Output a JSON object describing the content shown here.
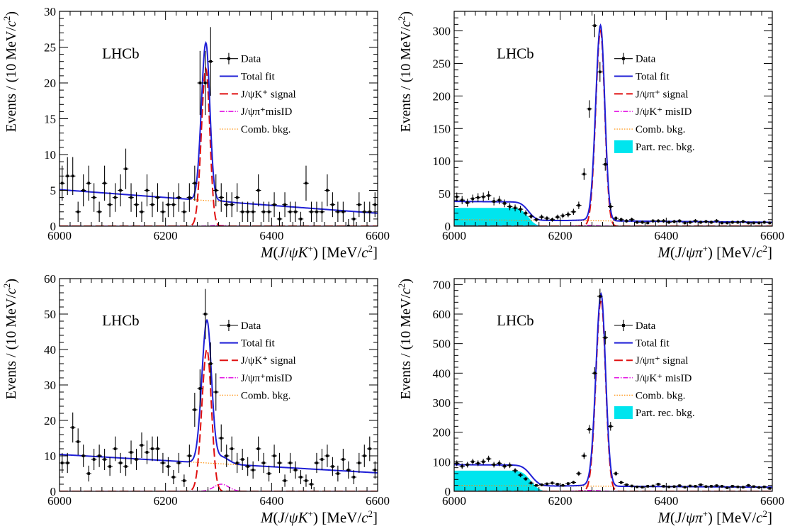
{
  "chart_data": [
    {
      "type": "line",
      "label": "LHCb",
      "xlabel_parts": {
        "m": "M",
        "open": "(",
        "jpsi_j": "J",
        "slash": "/",
        "psi": "ψ",
        "particle": "K",
        "charge": "+",
        "close": ")",
        "unit_pre": " [MeV/",
        "c": "c",
        "sq": "2",
        "unit_post": "]"
      },
      "ylabel_parts": {
        "pre": "Events / (10 MeV/",
        "c": "c",
        "sq": "2",
        "post": ")"
      },
      "xlim": [
        6000,
        6600
      ],
      "ylim": [
        0,
        30
      ],
      "xticks": [
        6000,
        6200,
        6400,
        6600
      ],
      "yticks": [
        0,
        5,
        10,
        15,
        20,
        25,
        30
      ],
      "legend": [
        {
          "key": "data",
          "text": "Data",
          "style": "data"
        },
        {
          "key": "total",
          "text": "Total fit",
          "style": "total"
        },
        {
          "key": "signal",
          "text": "J/ψK⁺ signal",
          "style": "signal"
        },
        {
          "key": "misid",
          "text": "J/ψπ⁺misID",
          "style": "misid"
        },
        {
          "key": "comb",
          "text": "Comb. bkg.",
          "style": "comb"
        }
      ],
      "comb": {
        "a": 5.1,
        "b": 1.8
      },
      "partrec": null,
      "signal": {
        "mu": 6276,
        "amp": 22,
        "sigma": 7.5
      },
      "misid": {
        "mu": 6300,
        "amp": 0.1,
        "sigma": 15
      },
      "data": {
        "x": [
          6005,
          6015,
          6025,
          6035,
          6045,
          6055,
          6065,
          6075,
          6085,
          6095,
          6105,
          6115,
          6125,
          6135,
          6145,
          6155,
          6165,
          6175,
          6185,
          6195,
          6205,
          6215,
          6225,
          6235,
          6245,
          6255,
          6265,
          6275,
          6285,
          6295,
          6305,
          6315,
          6325,
          6335,
          6345,
          6355,
          6365,
          6375,
          6385,
          6395,
          6405,
          6415,
          6425,
          6435,
          6445,
          6455,
          6465,
          6475,
          6485,
          6495,
          6505,
          6515,
          6525,
          6535,
          6545,
          6555,
          6565,
          6575,
          6585,
          6595
        ],
        "y": [
          6,
          7,
          7,
          2,
          5,
          6,
          4,
          2,
          6,
          3,
          4,
          5,
          8,
          4,
          3,
          2,
          5,
          3,
          4,
          2,
          3,
          3,
          4,
          2,
          4,
          6,
          20,
          20,
          23,
          5,
          4,
          3,
          3,
          4,
          2,
          2,
          2,
          5,
          2,
          2,
          3,
          1,
          3,
          2,
          2,
          1,
          6,
          2,
          2,
          2,
          5,
          3,
          2,
          2,
          0,
          1,
          3,
          2,
          2,
          3
        ]
      }
    },
    {
      "type": "line",
      "label": "LHCb",
      "xlabel_parts": {
        "m": "M",
        "open": "(",
        "jpsi_j": "J",
        "slash": "/",
        "psi": "ψ",
        "particle": "π",
        "charge": "+",
        "close": ")",
        "unit_pre": " [MeV/",
        "c": "c",
        "sq": "2",
        "unit_post": "]"
      },
      "ylabel_parts": {
        "pre": "Events / (10 MeV/",
        "c": "c",
        "sq": "2",
        "post": ")"
      },
      "xlim": [
        6000,
        6600
      ],
      "ylim": [
        0,
        330
      ],
      "xticks": [
        6000,
        6200,
        6400,
        6600
      ],
      "yticks": [
        0,
        50,
        100,
        150,
        200,
        250,
        300
      ],
      "legend": [
        {
          "key": "data",
          "text": "Data",
          "style": "data"
        },
        {
          "key": "total",
          "text": "Total fit",
          "style": "total"
        },
        {
          "key": "signal",
          "text": "J/ψπ⁺ signal",
          "style": "signal"
        },
        {
          "key": "misid",
          "text": "J/ψK⁺ misID",
          "style": "misid"
        },
        {
          "key": "comb",
          "text": "Comb. bkg.",
          "style": "comb"
        },
        {
          "key": "partrec",
          "text": "Part. rec. bkg.",
          "style": "partrec"
        }
      ],
      "comb": {
        "a": 10,
        "b": 6
      },
      "partrec": {
        "level": 28,
        "edge": 6140,
        "width": 16
      },
      "signal": {
        "mu": 6276,
        "amp": 300,
        "sigma": 8
      },
      "misid": {
        "mu": 6250,
        "amp": 1,
        "sigma": 20
      },
      "data": {
        "x": [
          6005,
          6015,
          6025,
          6035,
          6045,
          6055,
          6065,
          6075,
          6085,
          6095,
          6105,
          6115,
          6125,
          6135,
          6145,
          6155,
          6165,
          6175,
          6185,
          6195,
          6205,
          6215,
          6225,
          6235,
          6245,
          6255,
          6265,
          6275,
          6285,
          6295,
          6305,
          6315,
          6325,
          6335,
          6345,
          6355,
          6365,
          6375,
          6385,
          6395,
          6405,
          6415,
          6425,
          6435,
          6445,
          6455,
          6465,
          6475,
          6485,
          6495,
          6505,
          6515,
          6525,
          6535,
          6545,
          6555,
          6565,
          6575,
          6585,
          6595
        ],
        "y": [
          45,
          40,
          36,
          42,
          44,
          45,
          47,
          38,
          40,
          35,
          30,
          28,
          26,
          20,
          15,
          10,
          14,
          12,
          10,
          14,
          16,
          18,
          22,
          32,
          80,
          180,
          308,
          237,
          95,
          30,
          12,
          10,
          8,
          10,
          6,
          6,
          5,
          8,
          8,
          8,
          6,
          7,
          8,
          5,
          6,
          8,
          6,
          7,
          6,
          8,
          5,
          5,
          6,
          6,
          7,
          5,
          5,
          5,
          6,
          5
        ]
      }
    },
    {
      "type": "line",
      "label": "LHCb",
      "xlabel_parts": {
        "m": "M",
        "open": "(",
        "jpsi_j": "J",
        "slash": "/",
        "psi": "ψ",
        "particle": "K",
        "charge": "+",
        "close": ")",
        "unit_pre": " [MeV/",
        "c": "c",
        "sq": "2",
        "unit_post": "]"
      },
      "ylabel_parts": {
        "pre": "Events / (10 MeV/",
        "c": "c",
        "sq": "2",
        "post": ")"
      },
      "xlim": [
        6000,
        6600
      ],
      "ylim": [
        0,
        60
      ],
      "xticks": [
        6000,
        6200,
        6400,
        6600
      ],
      "yticks": [
        0,
        10,
        20,
        30,
        40,
        50,
        60
      ],
      "legend": [
        {
          "key": "data",
          "text": "Data",
          "style": "data"
        },
        {
          "key": "total",
          "text": "Total fit",
          "style": "total"
        },
        {
          "key": "signal",
          "text": "J/ψK⁺ signal",
          "style": "signal"
        },
        {
          "key": "misid",
          "text": "J/ψπ⁺misID",
          "style": "misid"
        },
        {
          "key": "comb",
          "text": "Comb. bkg.",
          "style": "comb"
        }
      ],
      "comb": {
        "a": 10.4,
        "b": 5.2
      },
      "partrec": null,
      "signal": {
        "mu": 6278,
        "amp": 40,
        "sigma": 8.5
      },
      "misid": {
        "mu": 6305,
        "amp": 2,
        "sigma": 14
      },
      "data": {
        "x": [
          6005,
          6015,
          6025,
          6035,
          6045,
          6055,
          6065,
          6075,
          6085,
          6095,
          6105,
          6115,
          6125,
          6135,
          6145,
          6155,
          6165,
          6175,
          6185,
          6195,
          6205,
          6215,
          6225,
          6235,
          6245,
          6255,
          6265,
          6275,
          6285,
          6295,
          6305,
          6315,
          6325,
          6335,
          6345,
          6355,
          6365,
          6375,
          6385,
          6395,
          6405,
          6415,
          6425,
          6435,
          6445,
          6455,
          6465,
          6475,
          6485,
          6495,
          6505,
          6515,
          6525,
          6535,
          6545,
          6555,
          6565,
          6575,
          6585,
          6595
        ],
        "y": [
          8,
          8,
          18,
          14,
          10,
          5,
          9,
          10,
          9,
          7,
          12,
          8,
          7,
          11,
          9,
          13,
          11,
          12,
          12,
          8,
          7,
          4,
          8,
          3,
          10,
          23,
          29,
          50,
          36,
          28,
          15,
          10,
          12,
          8,
          9,
          7,
          6,
          12,
          8,
          5,
          10,
          8,
          3,
          8,
          6,
          4,
          3,
          2,
          8,
          9,
          10,
          7,
          5,
          9,
          6,
          4,
          8,
          10,
          12,
          6
        ]
      }
    },
    {
      "type": "line",
      "label": "LHCb",
      "xlabel_parts": {
        "m": "M",
        "open": "(",
        "jpsi_j": "J",
        "slash": "/",
        "psi": "ψ",
        "particle": "π",
        "charge": "+",
        "close": ")",
        "unit_pre": " [MeV/",
        "c": "c",
        "sq": "2",
        "unit_post": "]"
      },
      "ylabel_parts": {
        "pre": "Events / (10 MeV/",
        "c": "c",
        "sq": "2",
        "post": ")"
      },
      "xlim": [
        6000,
        6600
      ],
      "ylim": [
        0,
        720
      ],
      "xticks": [
        6000,
        6200,
        6400,
        6600
      ],
      "yticks": [
        0,
        100,
        200,
        300,
        400,
        500,
        600,
        700
      ],
      "legend": [
        {
          "key": "data",
          "text": "Data",
          "style": "data"
        },
        {
          "key": "total",
          "text": "Total fit",
          "style": "total"
        },
        {
          "key": "signal",
          "text": "J/ψπ⁺ signal",
          "style": "signal"
        },
        {
          "key": "misid",
          "text": "J/ψK⁺ misID",
          "style": "misid"
        },
        {
          "key": "comb",
          "text": "Comb. bkg.",
          "style": "comb"
        },
        {
          "key": "partrec",
          "text": "Part. rec. bkg.",
          "style": "partrec"
        }
      ],
      "comb": {
        "a": 20,
        "b": 14
      },
      "partrec": {
        "level": 70,
        "edge": 6145,
        "width": 18
      },
      "signal": {
        "mu": 6277,
        "amp": 650,
        "sigma": 8.5
      },
      "misid": {
        "mu": 6255,
        "amp": 3,
        "sigma": 20
      },
      "data": {
        "x": [
          6005,
          6015,
          6025,
          6035,
          6045,
          6055,
          6065,
          6075,
          6085,
          6095,
          6105,
          6115,
          6125,
          6135,
          6145,
          6155,
          6165,
          6175,
          6185,
          6195,
          6205,
          6215,
          6225,
          6235,
          6245,
          6255,
          6265,
          6275,
          6285,
          6295,
          6305,
          6315,
          6325,
          6335,
          6345,
          6355,
          6365,
          6375,
          6385,
          6395,
          6405,
          6415,
          6425,
          6435,
          6445,
          6455,
          6465,
          6475,
          6485,
          6495,
          6505,
          6515,
          6525,
          6535,
          6545,
          6555,
          6565,
          6575,
          6585,
          6595
        ],
        "y": [
          95,
          85,
          90,
          100,
          95,
          100,
          110,
          90,
          95,
          85,
          88,
          70,
          55,
          42,
          28,
          20,
          22,
          25,
          28,
          24,
          20,
          26,
          30,
          60,
          120,
          210,
          400,
          660,
          520,
          220,
          60,
          30,
          22,
          18,
          15,
          14,
          17,
          18,
          24,
          17,
          15,
          16,
          19,
          14,
          18,
          17,
          22,
          16,
          17,
          19,
          17,
          12,
          17,
          15,
          14,
          20,
          16,
          13,
          15,
          10
        ]
      }
    }
  ]
}
